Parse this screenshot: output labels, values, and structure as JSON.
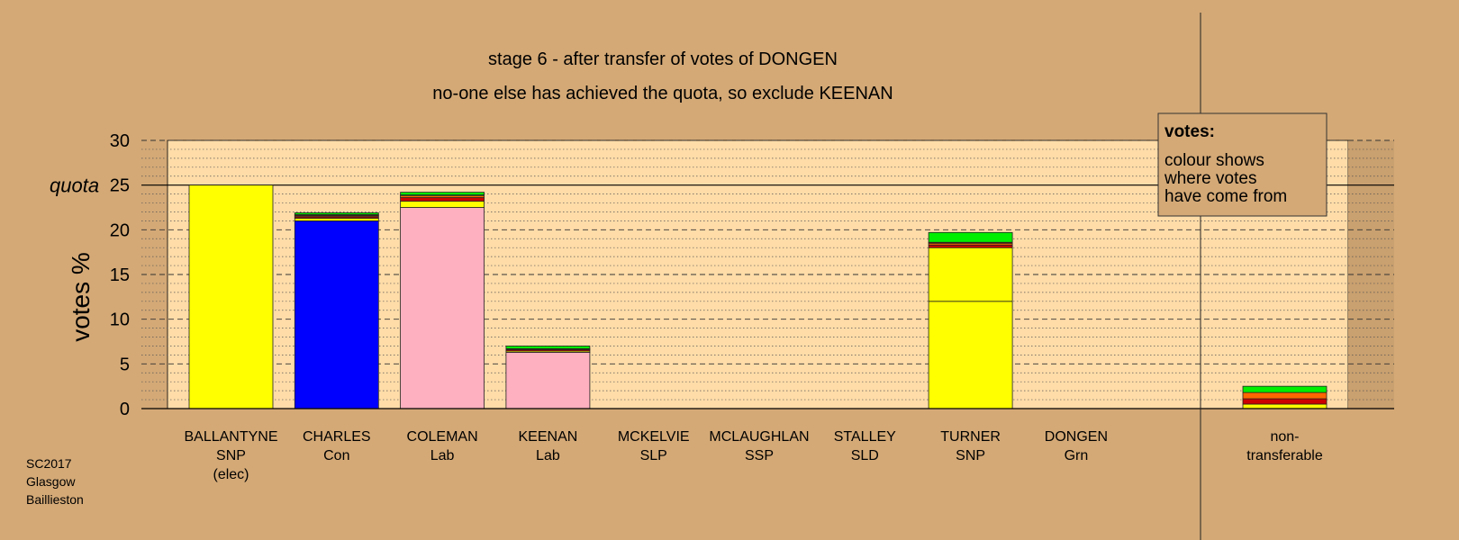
{
  "chart_data": {
    "type": "bar",
    "stacked": true,
    "title": "stage 6 - after transfer of votes of DONGEN",
    "subtitle": "no-one else has achieved the quota, so exclude KEENAN",
    "ylabel": "votes %",
    "ylim": [
      0,
      30
    ],
    "yticks": [
      "0",
      "5",
      "10",
      "15",
      "20",
      "25",
      "30"
    ],
    "quota_label": "quota",
    "quota_value": 25,
    "grid": "major dashed every 5, minor dotted every 1",
    "legend": {
      "title": "votes:",
      "lines": [
        "colour shows",
        "where votes",
        "have come from"
      ],
      "position": "top-right"
    },
    "colors": {
      "snp": "#ffff00",
      "con": "#0000ff",
      "lab": "#ffb0c0",
      "slp": "#cc0000",
      "ssp": "#ff6600",
      "sld": "#8b4513",
      "grn": "#00ee00",
      "plot_bg": "#ffdca8",
      "page_bg": "#d4a976"
    },
    "categories": [
      {
        "name": "BALLANTYNE",
        "party": "SNP",
        "note": "(elec)"
      },
      {
        "name": "CHARLES",
        "party": "Con",
        "note": ""
      },
      {
        "name": "COLEMAN",
        "party": "Lab",
        "note": ""
      },
      {
        "name": "KEENAN",
        "party": "Lab",
        "note": ""
      },
      {
        "name": "MCKELVIE",
        "party": "SLP",
        "note": ""
      },
      {
        "name": "MCLAUGHLAN",
        "party": "SSP",
        "note": ""
      },
      {
        "name": "STALLEY",
        "party": "SLD",
        "note": ""
      },
      {
        "name": "TURNER",
        "party": "SNP",
        "note": ""
      },
      {
        "name": "DONGEN",
        "party": "Grn",
        "note": ""
      }
    ],
    "bars": [
      {
        "segments": [
          {
            "from": "snp",
            "value": 25.0
          }
        ]
      },
      {
        "segments": [
          {
            "from": "con",
            "value": 21.0
          },
          {
            "from": "snp",
            "value": 0.3
          },
          {
            "from": "slp",
            "value": 0.15
          },
          {
            "from": "sld",
            "value": 0.15
          },
          {
            "from": "ssp",
            "value": 0.1
          },
          {
            "from": "grn",
            "value": 0.2
          }
        ]
      },
      {
        "segments": [
          {
            "from": "lab",
            "value": 22.5
          },
          {
            "from": "snp",
            "value": 0.7
          },
          {
            "from": "slp",
            "value": 0.4
          },
          {
            "from": "ssp",
            "value": 0.2
          },
          {
            "from": "snp",
            "value": 0.1
          },
          {
            "from": "grn",
            "value": 0.3
          }
        ]
      },
      {
        "segments": [
          {
            "from": "lab",
            "value": 6.3
          },
          {
            "from": "snp",
            "value": 0.15
          },
          {
            "from": "slp",
            "value": 0.15
          },
          {
            "from": "sld",
            "value": 0.1
          },
          {
            "from": "grn",
            "value": 0.3
          }
        ]
      },
      {
        "segments": []
      },
      {
        "segments": []
      },
      {
        "segments": []
      },
      {
        "segments": [
          {
            "from": "snp",
            "value": 12.0
          },
          {
            "from": "snp",
            "value": 6.0
          },
          {
            "from": "slp",
            "value": 0.3
          },
          {
            "from": "ssp",
            "value": 0.2
          },
          {
            "from": "slp",
            "value": 0.1
          },
          {
            "from": "grn",
            "value": 1.1
          }
        ]
      },
      {
        "segments": []
      }
    ],
    "non_transferable": {
      "label_line1": "non-",
      "label_line2": "transferable",
      "segments": [
        {
          "from": "snp",
          "value": 0.5
        },
        {
          "from": "slp",
          "value": 0.6
        },
        {
          "from": "ssp",
          "value": 0.7
        },
        {
          "from": "grn",
          "value": 0.7
        }
      ]
    }
  },
  "footer": {
    "line1": "SC2017",
    "line2": "Glasgow",
    "line3": "Baillieston"
  }
}
